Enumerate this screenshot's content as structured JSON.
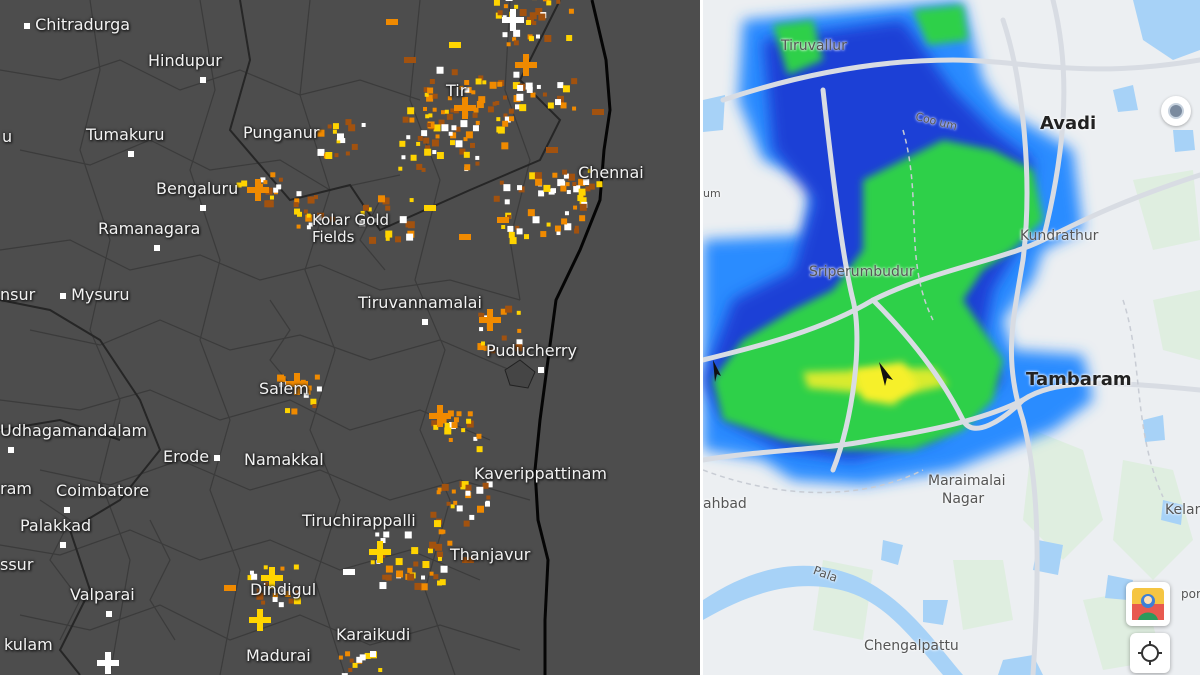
{
  "lightning_map": {
    "labels": [
      {
        "name": "Chitradurga",
        "dot": "before"
      },
      {
        "name": "Hindupur",
        "dot": "after"
      },
      {
        "name": "Tumakuru",
        "dot": "after"
      },
      {
        "name": "Punganur",
        "dot": "none"
      },
      {
        "name": "Bengaluru",
        "dot": "after"
      },
      {
        "name": "Kolar Gold Fields",
        "dot": "none"
      },
      {
        "name": "Ramanagara",
        "dot": "after"
      },
      {
        "name": "Chennai",
        "dot": "none"
      },
      {
        "name": "Mysuru",
        "dot": "before"
      },
      {
        "name": "Tiruvannamalai",
        "dot": "after"
      },
      {
        "name": "Puducherry",
        "dot": "after"
      },
      {
        "name": "Salem",
        "dot": "none"
      },
      {
        "name": "Udhagamandalam",
        "dot": "after"
      },
      {
        "name": "Erode",
        "dot": "after"
      },
      {
        "name": "Namakkal",
        "dot": "none"
      },
      {
        "name": "Kaverippattinam",
        "dot": "none"
      },
      {
        "name": "Coimbatore",
        "dot": "after"
      },
      {
        "name": "Tiruchirappalli",
        "dot": "none"
      },
      {
        "name": "Palakkad",
        "dot": "after"
      },
      {
        "name": "Thanjavur",
        "dot": "none"
      },
      {
        "name": "Valparai",
        "dot": "after"
      },
      {
        "name": "Dindigul",
        "dot": "none"
      },
      {
        "name": "Karaikudi",
        "dot": "after"
      },
      {
        "name": "Madurai",
        "dot": "after"
      },
      {
        "name": "kulam",
        "dot": "none"
      },
      {
        "name": "nsur",
        "dot": "none"
      },
      {
        "name": "ram",
        "dot": "none"
      },
      {
        "name": "ssur",
        "dot": "none"
      },
      {
        "name": "Tir",
        "dot": "none"
      },
      {
        "name": "u",
        "dot": "none"
      }
    ]
  },
  "rain_radar_map": {
    "labels": [
      {
        "name": "Tiruvallur"
      },
      {
        "name": "Avadi"
      },
      {
        "name": "Sriperumbudur"
      },
      {
        "name": "Kundrathur"
      },
      {
        "name": "Tambaram"
      },
      {
        "name": "Maraimalai Nagar"
      },
      {
        "name": "Chengalpattu"
      },
      {
        "name": "Pala"
      },
      {
        "name": "ahbad"
      },
      {
        "name": "Kelam"
      },
      {
        "name": "por"
      },
      {
        "name": "Coo um"
      },
      {
        "name": "um"
      }
    ],
    "controls": {
      "avatar_icon": "avatar-icon",
      "locate_icon": "locate-crosshair-icon",
      "compass_icon": "compass-dot-icon"
    }
  },
  "colors": {
    "lightning_recent": "#ffffff",
    "lightning_yellow": "#ffd400",
    "lightning_orange": "#f08a00",
    "lightning_brown": "#a2520f",
    "radar_light": "#2a8cff",
    "radar_medium": "#1e3fd6",
    "radar_heavy": "#2fd04a",
    "radar_intense": "#f6f02a",
    "water": "#a7d2f7",
    "coast": "#000000"
  }
}
